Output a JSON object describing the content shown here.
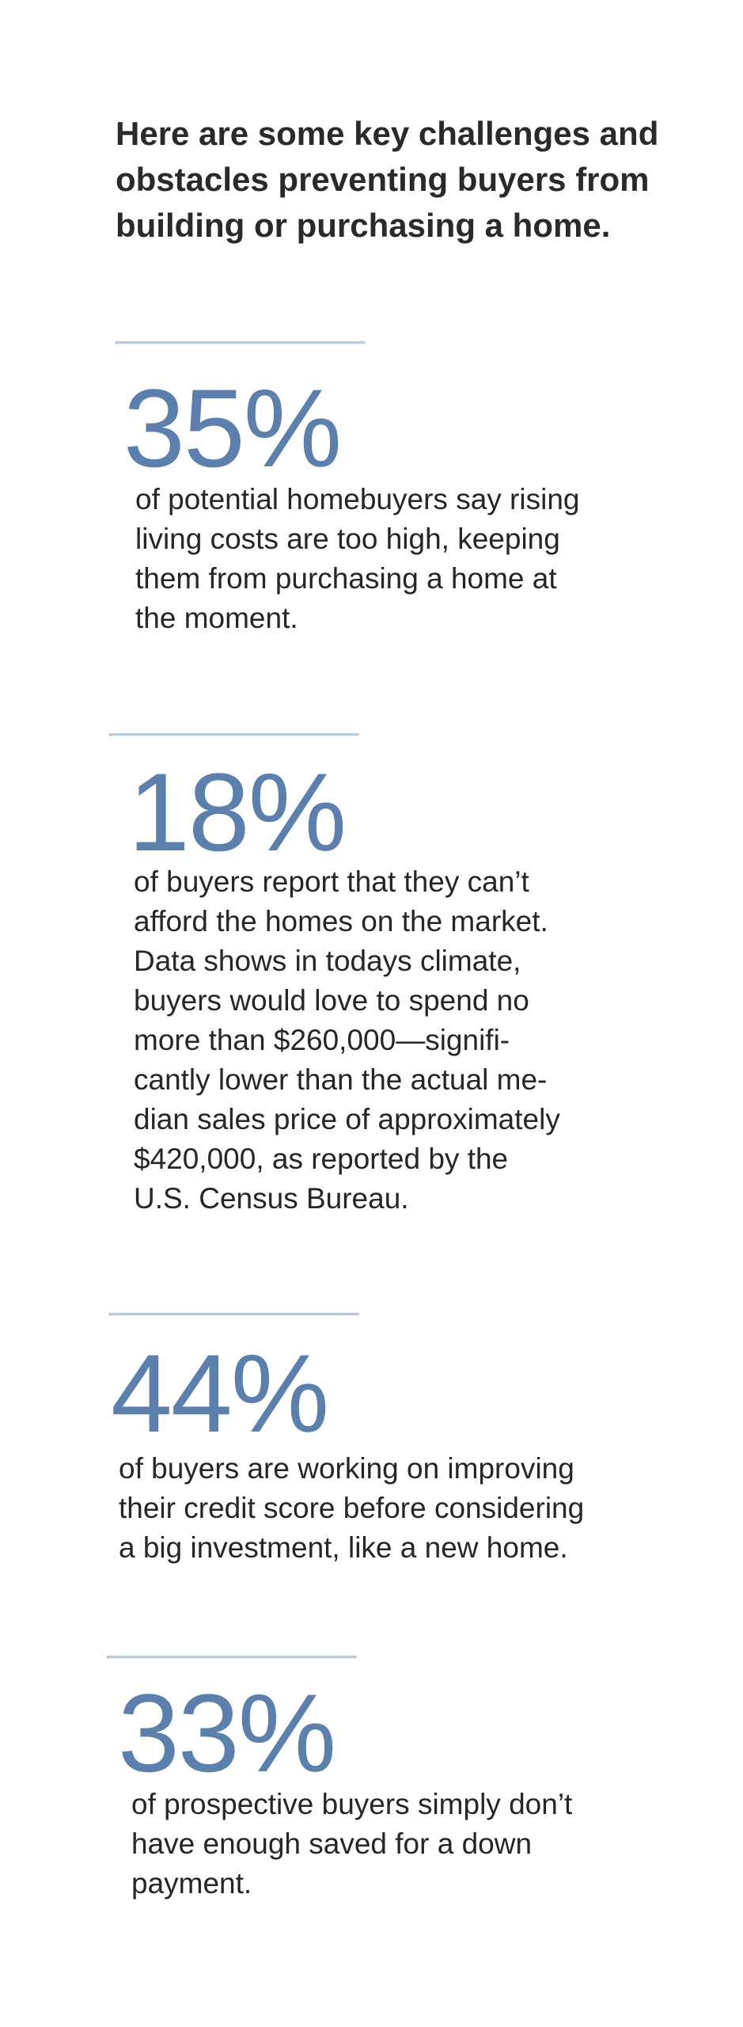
{
  "intro": {
    "lines": [
      "Here are some key challenges and",
      "obstacles preventing buyers from",
      "building or purchasing a home."
    ]
  },
  "stats": [
    {
      "value": "35%",
      "lines": [
        "of potential homebuyers say rising",
        "living costs are too high, keeping",
        "them from purchasing a home at",
        "the moment."
      ]
    },
    {
      "value": "18%",
      "lines": [
        "of buyers report that they can’t",
        "afford the homes on the market.",
        "Data shows in todays climate,",
        "buyers would love to spend no",
        "more than $260,000—signifi-",
        "cantly lower than the actual me-",
        "dian sales price of approximately",
        "$420,000, as reported by the",
        "U.S. Census Bureau."
      ]
    },
    {
      "value": "44%",
      "lines": [
        "of buyers are working on improving",
        "their credit score before considering",
        "a big investment, like a new home."
      ]
    },
    {
      "value": "33%",
      "lines": [
        "of prospective buyers simply don’t",
        "have enough saved for a down",
        "payment."
      ]
    }
  ],
  "colors": {
    "accent": "#5b80ad",
    "divider": "#b9cbe0",
    "text": "#262626"
  }
}
